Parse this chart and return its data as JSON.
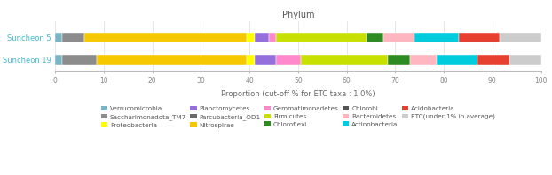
{
  "title": "Phylum",
  "xlabel": "Proportion (cut-off % for ETC taxa : 1.0%)",
  "ylabels": [
    "Suncheon 5",
    "Suncheon 19"
  ],
  "xlim": [
    0,
    100
  ],
  "xticks": [
    0,
    10,
    20,
    30,
    40,
    50,
    60,
    70,
    80,
    90,
    100
  ],
  "segments": {
    "Suncheon 5": [
      {
        "label": "Verrucomicrobia",
        "value": 1.5,
        "color": "#7ab5c5"
      },
      {
        "label": "Saccharimonadota_TM7",
        "value": 4.5,
        "color": "#8c8c8c"
      },
      {
        "label": "Nitrospirae",
        "value": 33.5,
        "color": "#f5c800"
      },
      {
        "label": "Proteobacteria",
        "value": 1.5,
        "color": "#ffff00"
      },
      {
        "label": "Planctomycetes",
        "value": 3.0,
        "color": "#9370DB"
      },
      {
        "label": "Gemmatimonadetes",
        "value": 1.5,
        "color": "#ff88cc"
      },
      {
        "label": "Firmicutes",
        "value": 18.5,
        "color": "#c8e000"
      },
      {
        "label": "Chloroflexi",
        "value": 3.5,
        "color": "#2e8b22"
      },
      {
        "label": "Bacteroidetes",
        "value": 6.5,
        "color": "#FFB6C1"
      },
      {
        "label": "Actinobacteria",
        "value": 9.0,
        "color": "#00ccdd"
      },
      {
        "label": "Acidobacteria",
        "value": 8.5,
        "color": "#e84030"
      },
      {
        "label": "ETC",
        "value": 8.5,
        "color": "#cccccc"
      }
    ],
    "Suncheon 19": [
      {
        "label": "Verrucomicrobia",
        "value": 1.5,
        "color": "#7ab5c5"
      },
      {
        "label": "Saccharimonadota_TM7",
        "value": 7.0,
        "color": "#8c8c8c"
      },
      {
        "label": "Nitrospirae",
        "value": 31.0,
        "color": "#f5c800"
      },
      {
        "label": "Proteobacteria",
        "value": 1.5,
        "color": "#ffff00"
      },
      {
        "label": "Planctomycetes",
        "value": 4.5,
        "color": "#9370DB"
      },
      {
        "label": "Gemmatimonadetes",
        "value": 5.0,
        "color": "#ff88cc"
      },
      {
        "label": "Firmicutes",
        "value": 18.0,
        "color": "#c8e000"
      },
      {
        "label": "Chloroflexi",
        "value": 4.5,
        "color": "#2e8b22"
      },
      {
        "label": "Bacteroidetes",
        "value": 5.5,
        "color": "#FFB6C1"
      },
      {
        "label": "Actinobacteria",
        "value": 8.5,
        "color": "#00ccdd"
      },
      {
        "label": "Acidobacteria",
        "value": 6.5,
        "color": "#e84030"
      },
      {
        "label": "ETC",
        "value": 6.5,
        "color": "#cccccc"
      }
    ]
  },
  "legend_items": [
    {
      "label": "Verrucomicrobia",
      "color": "#7ab5c5"
    },
    {
      "label": "Saccharimonadota_TM7",
      "color": "#8c8c8c"
    },
    {
      "label": "Proteobacteria",
      "color": "#ffff00"
    },
    {
      "label": "Planctomycetes",
      "color": "#9370DB"
    },
    {
      "label": "Parcubacteria_OD1",
      "color": "#696969"
    },
    {
      "label": "Nitrospirae",
      "color": "#f5c800"
    },
    {
      "label": "Gemmatimonadetes",
      "color": "#ff88cc"
    },
    {
      "label": "Firmicutes",
      "color": "#c8e000"
    },
    {
      "label": "Chloroflexi",
      "color": "#2e8b22"
    },
    {
      "label": "Chlorobi",
      "color": "#555555"
    },
    {
      "label": "Bacteroidetes",
      "color": "#FFB6C1"
    },
    {
      "label": "Actinobacteria",
      "color": "#00ccdd"
    },
    {
      "label": "Acidobacteria",
      "color": "#e84030"
    },
    {
      "label": "ETC(under 1% in average)",
      "color": "#cccccc"
    }
  ],
  "bar_height": 0.45,
  "title_fontsize": 7,
  "label_fontsize": 6,
  "tick_fontsize": 5.5,
  "legend_fontsize": 5.2,
  "ybar_label_color": "#44bbcc",
  "background_color": "#ffffff"
}
